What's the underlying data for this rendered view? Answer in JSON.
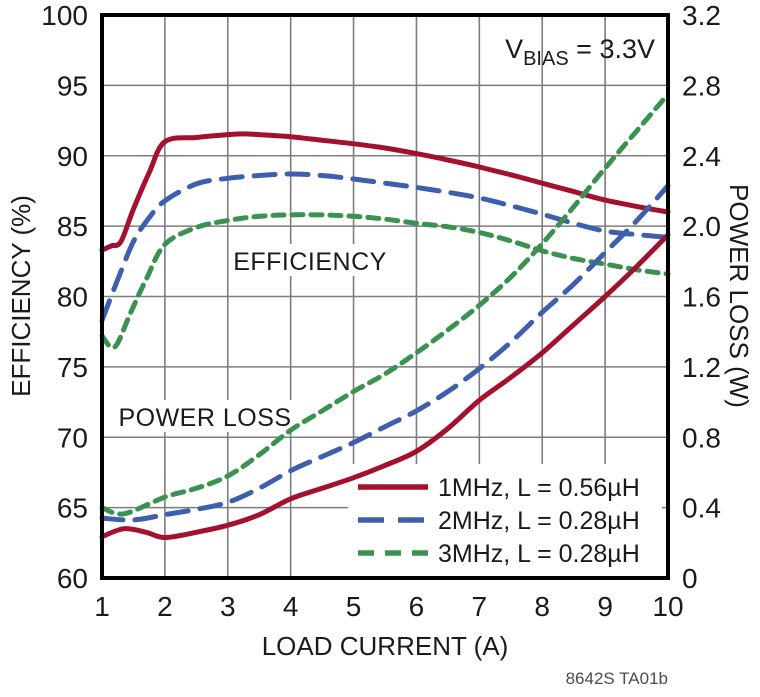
{
  "annotation": {
    "v": "V",
    "sub": "BIAS",
    "rest": " = 3.3V"
  },
  "footnote": "8642S TA01b",
  "colors": {
    "red": "#A4112E",
    "blue": "#3E5FAE",
    "green": "#3A9150",
    "grid": "#7D7D7D",
    "text": "#1A1A1A"
  },
  "chart_data": {
    "type": "line",
    "title": "",
    "xlabel": "LOAD CURRENT (A)",
    "ylabel_left": "EFFICIENCY (%)",
    "ylabel_right": "POWER LOSS (W)",
    "xlim": [
      1,
      10
    ],
    "ylim_left": [
      60,
      100
    ],
    "ylim_right": [
      0,
      3.2
    ],
    "x_ticks": [
      "1",
      "2",
      "3",
      "4",
      "5",
      "6",
      "7",
      "8",
      "9",
      "10"
    ],
    "y_ticks_left": [
      "100",
      "95",
      "90",
      "85",
      "80",
      "75",
      "70",
      "65",
      "60"
    ],
    "y_ticks_right": [
      "3.2",
      "2.8",
      "2.4",
      "2.0",
      "1.6",
      "1.2",
      "0.8",
      "0.4",
      "0"
    ],
    "grid": true,
    "curve_labels": {
      "efficiency": "EFFICIENCY",
      "power_loss": "POWER LOSS"
    },
    "legend": {
      "position": "bottom-right",
      "entries": [
        {
          "label": "1MHz, L = 0.56µH",
          "color": "#A4112E",
          "dash": "none"
        },
        {
          "label": "2MHz, L = 0.28µH",
          "color": "#3E5FAE",
          "dash": "26 14"
        },
        {
          "label": "3MHz, L = 0.28µH",
          "color": "#3A9150",
          "dash": "16 11"
        }
      ]
    },
    "series": [
      {
        "key": "eff-1mhz",
        "name": "Efficiency 1MHz, L = 0.56µH",
        "group": "efficiency",
        "axis": "left",
        "color": "#A4112E",
        "dash": "none",
        "x": [
          1,
          1.15,
          1.3,
          1.5,
          1.75,
          2,
          2.5,
          3,
          3.25,
          3.5,
          4,
          4.5,
          5,
          5.5,
          6,
          6.5,
          7,
          7.5,
          8,
          8.5,
          9,
          9.5,
          10
        ],
        "y": [
          83.3,
          83.6,
          83.9,
          86.2,
          88.8,
          91.0,
          91.3,
          91.5,
          91.55,
          91.5,
          91.35,
          91.1,
          90.85,
          90.55,
          90.15,
          89.7,
          89.2,
          88.65,
          88.05,
          87.45,
          86.85,
          86.4,
          86.0
        ]
      },
      {
        "key": "eff-2mhz",
        "name": "Efficiency 2MHz, L = 0.28µH",
        "group": "efficiency",
        "axis": "left",
        "color": "#3E5FAE",
        "dash": "21 12",
        "x": [
          1,
          1.25,
          1.5,
          1.75,
          2,
          2.5,
          3,
          3.5,
          4,
          4.5,
          5,
          5.5,
          6,
          6.5,
          7,
          7.5,
          8,
          8.5,
          9,
          9.5,
          10
        ],
        "y": [
          78.3,
          81.2,
          83.9,
          85.6,
          86.8,
          88.0,
          88.4,
          88.6,
          88.7,
          88.6,
          88.35,
          88.05,
          87.75,
          87.4,
          87.0,
          86.45,
          85.85,
          85.2,
          84.65,
          84.4,
          84.2
        ]
      },
      {
        "key": "eff-3mhz",
        "name": "Efficiency 3MHz, L = 0.28µH",
        "group": "efficiency",
        "axis": "left",
        "color": "#3A9150",
        "dash": "11 8",
        "x": [
          1,
          1.2,
          1.45,
          1.7,
          2,
          2.5,
          3,
          3.5,
          4,
          4.5,
          5,
          5.5,
          6,
          6.5,
          7,
          7.5,
          8,
          8.5,
          9,
          9.5,
          10
        ],
        "y": [
          77.2,
          76.4,
          78.8,
          81.2,
          83.7,
          84.9,
          85.4,
          85.7,
          85.8,
          85.8,
          85.7,
          85.5,
          85.2,
          84.95,
          84.55,
          83.95,
          83.25,
          82.7,
          82.3,
          81.9,
          81.6
        ]
      },
      {
        "key": "pl-1mhz",
        "name": "Power Loss 1MHz, L = 0.56µH",
        "group": "power_loss",
        "axis": "right",
        "color": "#A4112E",
        "dash": "none",
        "x": [
          1,
          1.35,
          1.7,
          2,
          2.5,
          3,
          3.5,
          4,
          4.5,
          5,
          5.5,
          6,
          6.5,
          7,
          7.5,
          8,
          8.5,
          9,
          9.5,
          10
        ],
        "y": [
          0.235,
          0.28,
          0.26,
          0.23,
          0.26,
          0.3,
          0.36,
          0.45,
          0.51,
          0.57,
          0.64,
          0.72,
          0.85,
          1.01,
          1.14,
          1.28,
          1.44,
          1.6,
          1.77,
          1.95
        ]
      },
      {
        "key": "pl-2mhz",
        "name": "Power Loss 2MHz, L = 0.28µH",
        "group": "power_loss",
        "axis": "right",
        "color": "#3E5FAE",
        "dash": "21 12",
        "x": [
          1,
          1.5,
          2,
          2.5,
          3,
          3.5,
          4,
          4.5,
          5,
          5.5,
          6,
          6.5,
          7,
          7.5,
          8,
          8.5,
          9,
          9.5,
          10
        ],
        "y": [
          0.34,
          0.33,
          0.36,
          0.39,
          0.43,
          0.51,
          0.61,
          0.69,
          0.77,
          0.86,
          0.95,
          1.06,
          1.19,
          1.34,
          1.51,
          1.67,
          1.85,
          2.03,
          2.23
        ]
      },
      {
        "key": "pl-3mhz",
        "name": "Power Loss 3MHz, L = 0.28µH",
        "group": "power_loss",
        "axis": "right",
        "color": "#3A9150",
        "dash": "11 8",
        "x": [
          1,
          1.35,
          2,
          2.5,
          3,
          3.5,
          4,
          4.5,
          5,
          5.5,
          6,
          6.5,
          7,
          7.5,
          8,
          8.5,
          9,
          9.5,
          10
        ],
        "y": [
          0.4,
          0.365,
          0.46,
          0.51,
          0.58,
          0.7,
          0.84,
          0.95,
          1.06,
          1.16,
          1.28,
          1.41,
          1.55,
          1.71,
          1.9,
          2.11,
          2.33,
          2.54,
          2.75
        ]
      }
    ]
  }
}
